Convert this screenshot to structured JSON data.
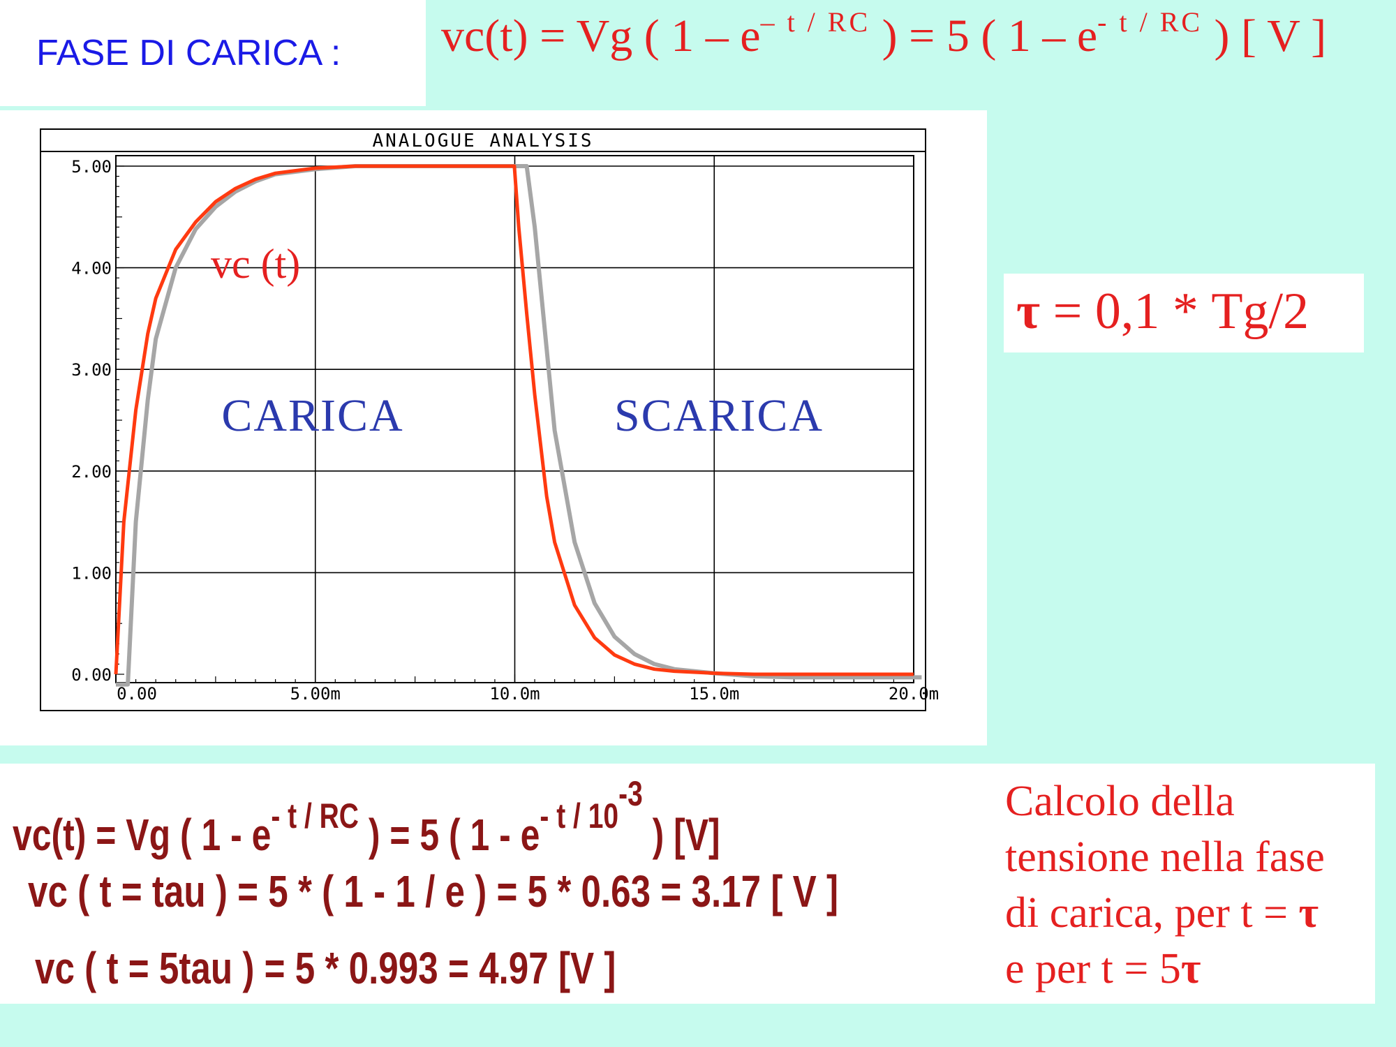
{
  "header": {
    "title": "FASE DI CARICA  :",
    "formula": {
      "part1": "vc(t) = Vg ( 1 – e",
      "exp1": "– t / RC",
      "part2": ") = 5 ( 1 – e",
      "exp2": "- t / RC",
      "part3": ")  [ V ]"
    }
  },
  "tau_box": {
    "symbol": "τ",
    "text": " = 0,1 * Tg/2"
  },
  "calculations": {
    "line1": {
      "a": "vc(t) = Vg ( 1 - e",
      "exp1": "- t / RC",
      "b": ") = 5 ( 1 -  e",
      "exp2": "- t / 10",
      "exp2b": "-3",
      "c": ") [V]"
    },
    "line2": "vc ( t = tau ) = 5 * ( 1 - 1 / e ) = 5 * 0.63 = 3.17 [ V ]",
    "line3": "vc ( t = 5tau ) = 5 * 0.993 = 4.97 [V ]"
  },
  "note": {
    "line1": "Calcolo della",
    "line2": "tensione nella fase",
    "line3a": "di carica, per t = ",
    "tau": "τ",
    "line4a": "e per t = 5",
    "tau2": "τ"
  },
  "colors": {
    "background": "#c6fbee",
    "red_curve": "#ff3a10",
    "grey_curve": "#a6a6a6",
    "phase_label": "#2b3aad",
    "text_red": "#e52020",
    "calc_text": "#8b1616"
  },
  "chart_data": {
    "type": "line",
    "title": "ANALOGUE ANALYSIS",
    "xlabel": "",
    "ylabel": "",
    "xlim": [
      0,
      0.02
    ],
    "ylim": [
      0,
      5
    ],
    "x_ticks": [
      "0.00",
      "5.00m",
      "10.0m",
      "15.0m",
      "20.0m"
    ],
    "y_ticks": [
      "0.00",
      "1.00",
      "2.00",
      "3.00",
      "4.00",
      "5.00"
    ],
    "grid": true,
    "annotations": [
      "vc (t)",
      "CARICA",
      "SCARICA"
    ],
    "series": [
      {
        "name": "vc (t)",
        "color": "#ff3a10",
        "x": [
          0,
          0.0002,
          0.0005,
          0.0008,
          0.001,
          0.0015,
          0.002,
          0.0025,
          0.003,
          0.0035,
          0.004,
          0.005,
          0.006,
          0.007,
          0.008,
          0.009,
          0.00999,
          0.0101,
          0.0103,
          0.0105,
          0.0108,
          0.011,
          0.0115,
          0.012,
          0.0125,
          0.013,
          0.0135,
          0.014,
          0.015,
          0.016,
          0.017,
          0.018,
          0.019,
          0.02
        ],
        "y": [
          0,
          1.5,
          2.6,
          3.35,
          3.7,
          4.18,
          4.45,
          4.65,
          4.78,
          4.87,
          4.93,
          4.98,
          5.0,
          5.0,
          5.0,
          5.0,
          5.0,
          4.4,
          3.55,
          2.75,
          1.75,
          1.3,
          0.68,
          0.36,
          0.19,
          0.1,
          0.05,
          0.03,
          0.01,
          0.0,
          0.0,
          0.0,
          0.0,
          0.0
        ]
      },
      {
        "name": "",
        "color": "#a6a6a6",
        "x": [
          0,
          0.0003,
          0.0005,
          0.0008,
          0.001,
          0.0015,
          0.002,
          0.0025,
          0.003,
          0.0035,
          0.004,
          0.005,
          0.006,
          0.007,
          0.008,
          0.009,
          0.01,
          0.0103,
          0.0105,
          0.0108,
          0.011,
          0.0115,
          0.012,
          0.0125,
          0.013,
          0.0135,
          0.014,
          0.015,
          0.016,
          0.017,
          0.018,
          0.019,
          0.0202
        ],
        "y": [
          -0.1,
          -0.1,
          1.5,
          2.7,
          3.3,
          4.0,
          4.38,
          4.6,
          4.75,
          4.85,
          4.92,
          4.97,
          5.0,
          5.0,
          5.0,
          5.0,
          5.0,
          5.0,
          4.4,
          3.2,
          2.4,
          1.3,
          0.7,
          0.37,
          0.2,
          0.1,
          0.05,
          0.01,
          -0.02,
          -0.03,
          -0.03,
          -0.03,
          -0.03
        ]
      }
    ]
  }
}
